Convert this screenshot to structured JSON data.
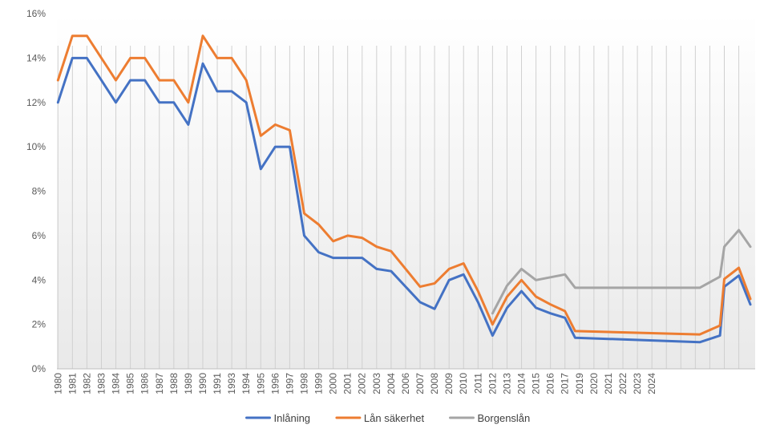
{
  "chart_data": {
    "type": "line",
    "title": "",
    "xlabel": "",
    "ylabel": "",
    "x": [
      "1980",
      "1981",
      "1982",
      "1983",
      "1984",
      "1985",
      "1986",
      "1987",
      "1988",
      "1989",
      "1990",
      "1991",
      "1993",
      "1994",
      "1995",
      "1996",
      "1997",
      "1998",
      "1999",
      "2000",
      "2001",
      "2002",
      "2003",
      "2004",
      "2006",
      "2007",
      "2008",
      "2009",
      "2010",
      "2011",
      "2012",
      "2013",
      "2014",
      "2015",
      "2016",
      "2017",
      "2019",
      "2020",
      "2021",
      "2022",
      "2023",
      "2024"
    ],
    "ylim": [
      0,
      16
    ],
    "ytick_labels": [
      "0%",
      "2%",
      "4%",
      "6%",
      "8%",
      "10%",
      "12%",
      "14%",
      "16%"
    ],
    "grid": "vertical lines at each category",
    "legend_position": "bottom",
    "series": [
      {
        "name": "Inlåning",
        "color": "#4472C4",
        "points": [
          {
            "x": 0,
            "y": 12.0
          },
          {
            "x": 1,
            "y": 14.0
          },
          {
            "x": 2,
            "y": 14.0
          },
          {
            "x": 3,
            "y": 13.0
          },
          {
            "x": 4,
            "y": 12.0
          },
          {
            "x": 5,
            "y": 13.0
          },
          {
            "x": 6,
            "y": 13.0
          },
          {
            "x": 7,
            "y": 12.0
          },
          {
            "x": 8,
            "y": 12.0
          },
          {
            "x": 9,
            "y": 11.0
          },
          {
            "x": 10,
            "y": 13.75
          },
          {
            "x": 11,
            "y": 12.5
          },
          {
            "x": 12,
            "y": 12.5
          },
          {
            "x": 13,
            "y": 12.0
          },
          {
            "x": 14,
            "y": 9.0
          },
          {
            "x": 15,
            "y": 10.0
          },
          {
            "x": 16,
            "y": 10.0
          },
          {
            "x": 17,
            "y": 6.0
          },
          {
            "x": 18,
            "y": 5.25
          },
          {
            "x": 19,
            "y": 5.0
          },
          {
            "x": 20,
            "y": 5.0
          },
          {
            "x": 21,
            "y": 5.0
          },
          {
            "x": 22,
            "y": 4.5
          },
          {
            "x": 23,
            "y": 4.4
          },
          {
            "x": 24,
            "y": 3.7
          },
          {
            "x": 25,
            "y": 3.0
          },
          {
            "x": 26,
            "y": 2.7
          },
          {
            "x": 27,
            "y": 4.0
          },
          {
            "x": 28,
            "y": 4.25
          },
          {
            "x": 29,
            "y": 3.0
          },
          {
            "x": 30,
            "y": 1.5
          },
          {
            "x": 31,
            "y": 2.75
          },
          {
            "x": 32,
            "y": 3.5
          },
          {
            "x": 33,
            "y": 2.75
          },
          {
            "x": 34,
            "y": 2.5
          },
          {
            "x": 35,
            "y": 2.3
          },
          {
            "x": 35.7,
            "y": 1.4
          },
          {
            "x": 44.3,
            "y": 1.2
          },
          {
            "x": 45.7,
            "y": 1.5
          },
          {
            "x": 46,
            "y": 3.7
          },
          {
            "x": 47,
            "y": 4.2
          },
          {
            "x": 47.8,
            "y": 2.9
          }
        ]
      },
      {
        "name": "Lån säkerhet",
        "color": "#ED7D31",
        "points": [
          {
            "x": 0,
            "y": 13.0
          },
          {
            "x": 1,
            "y": 15.0
          },
          {
            "x": 2,
            "y": 15.0
          },
          {
            "x": 3,
            "y": 14.0
          },
          {
            "x": 4,
            "y": 13.0
          },
          {
            "x": 5,
            "y": 14.0
          },
          {
            "x": 6,
            "y": 14.0
          },
          {
            "x": 7,
            "y": 13.0
          },
          {
            "x": 8,
            "y": 13.0
          },
          {
            "x": 9,
            "y": 12.0
          },
          {
            "x": 10,
            "y": 15.0
          },
          {
            "x": 11,
            "y": 14.0
          },
          {
            "x": 12,
            "y": 14.0
          },
          {
            "x": 13,
            "y": 13.0
          },
          {
            "x": 14,
            "y": 10.5
          },
          {
            "x": 15,
            "y": 11.0
          },
          {
            "x": 16,
            "y": 10.75
          },
          {
            "x": 17,
            "y": 7.0
          },
          {
            "x": 18,
            "y": 6.5
          },
          {
            "x": 19,
            "y": 5.75
          },
          {
            "x": 20,
            "y": 6.0
          },
          {
            "x": 21,
            "y": 5.9
          },
          {
            "x": 22,
            "y": 5.5
          },
          {
            "x": 23,
            "y": 5.3
          },
          {
            "x": 24,
            "y": 4.5
          },
          {
            "x": 25,
            "y": 3.7
          },
          {
            "x": 26,
            "y": 3.85
          },
          {
            "x": 27,
            "y": 4.5
          },
          {
            "x": 28,
            "y": 4.75
          },
          {
            "x": 29,
            "y": 3.5
          },
          {
            "x": 30,
            "y": 2.0
          },
          {
            "x": 31,
            "y": 3.25
          },
          {
            "x": 32,
            "y": 4.0
          },
          {
            "x": 33,
            "y": 3.25
          },
          {
            "x": 34,
            "y": 2.9
          },
          {
            "x": 35,
            "y": 2.6
          },
          {
            "x": 35.7,
            "y": 1.7
          },
          {
            "x": 44.3,
            "y": 1.55
          },
          {
            "x": 45.7,
            "y": 1.95
          },
          {
            "x": 46,
            "y": 4.05
          },
          {
            "x": 47,
            "y": 4.55
          },
          {
            "x": 47.8,
            "y": 3.15
          }
        ]
      },
      {
        "name": "Borgenslån",
        "color": "#A5A5A5",
        "points": [
          {
            "x": 30,
            "y": 2.5
          },
          {
            "x": 31,
            "y": 3.75
          },
          {
            "x": 32,
            "y": 4.5
          },
          {
            "x": 33,
            "y": 4.0
          },
          {
            "x": 35,
            "y": 4.25
          },
          {
            "x": 35.7,
            "y": 3.65
          },
          {
            "x": 44.3,
            "y": 3.65
          },
          {
            "x": 45.7,
            "y": 4.15
          },
          {
            "x": 46,
            "y": 5.5
          },
          {
            "x": 47,
            "y": 6.25
          },
          {
            "x": 47.8,
            "y": 5.5
          }
        ]
      }
    ]
  }
}
